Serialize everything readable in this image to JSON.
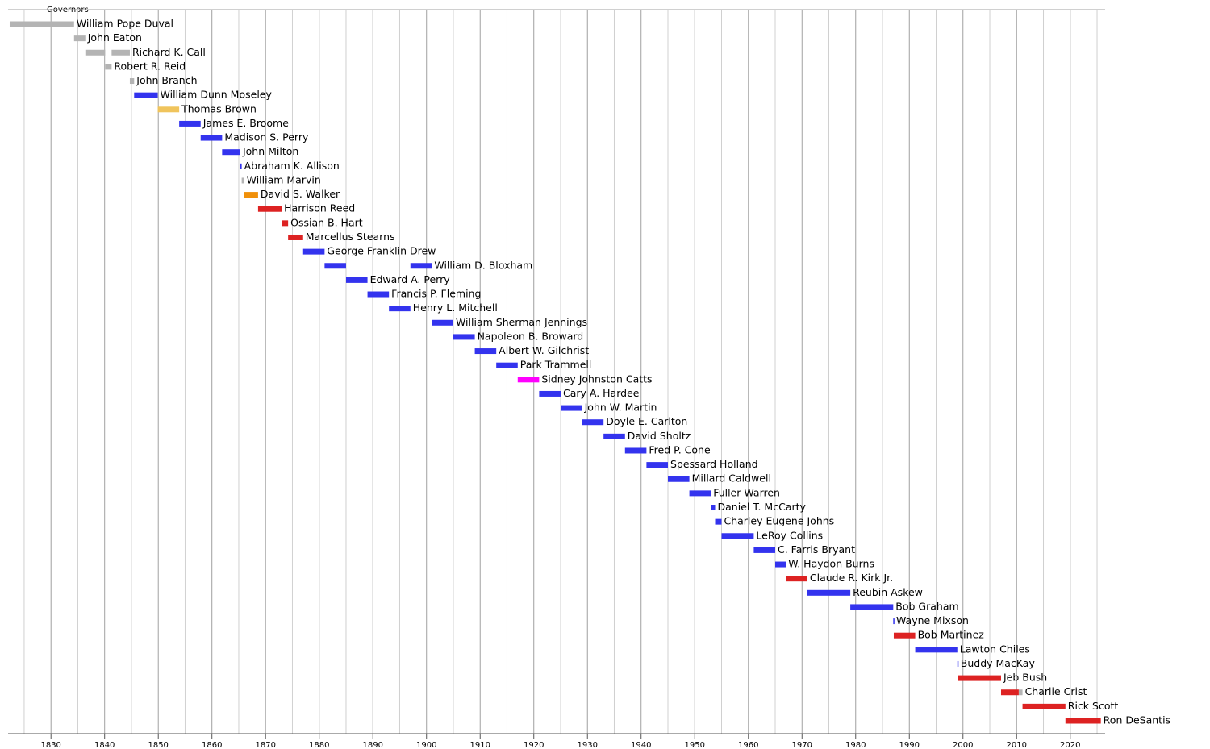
{
  "chart_data": {
    "type": "timeline",
    "title": "Governors",
    "xlim": [
      1822,
      2026.5
    ],
    "xticks": [
      1830,
      1840,
      1850,
      1860,
      1870,
      1880,
      1890,
      1900,
      1910,
      1920,
      1930,
      1940,
      1950,
      1960,
      1970,
      1980,
      1990,
      2000,
      2010,
      2020
    ],
    "minor_gridlines": [
      1825,
      1835,
      1845,
      1855,
      1865,
      1875,
      1885,
      1895,
      1905,
      1915,
      1925,
      1935,
      1945,
      1955,
      1965,
      1975,
      1985,
      1995,
      2005,
      2015,
      2025
    ],
    "grid": true,
    "rows": [
      {
        "name": "William Pope Duval",
        "segments": [
          {
            "start": 1822.3,
            "end": 1834.3,
            "color": "#b4b4b4"
          }
        ]
      },
      {
        "name": "John Eaton",
        "segments": [
          {
            "start": 1834.3,
            "end": 1836.4,
            "color": "#b4b4b4"
          }
        ]
      },
      {
        "name": "Richard K. Call",
        "segments": [
          {
            "start": 1836.4,
            "end": 1840.1,
            "color": "#b4b4b4"
          },
          {
            "start": 1841.3,
            "end": 1844.7,
            "color": "#b4b4b4"
          }
        ]
      },
      {
        "name": "Robert R. Reid",
        "segments": [
          {
            "start": 1840.1,
            "end": 1841.3,
            "color": "#b4b4b4"
          }
        ]
      },
      {
        "name": "John Branch",
        "segments": [
          {
            "start": 1844.7,
            "end": 1845.5,
            "color": "#b4b4b4"
          }
        ]
      },
      {
        "name": "William Dunn Moseley",
        "segments": [
          {
            "start": 1845.5,
            "end": 1849.9,
            "color": "#3333ee"
          }
        ]
      },
      {
        "name": "Thomas Brown",
        "segments": [
          {
            "start": 1849.9,
            "end": 1853.9,
            "color": "#f0c45c"
          }
        ]
      },
      {
        "name": "James E. Broome",
        "segments": [
          {
            "start": 1853.9,
            "end": 1857.9,
            "color": "#3333ee"
          }
        ]
      },
      {
        "name": "Madison S. Perry",
        "segments": [
          {
            "start": 1857.9,
            "end": 1861.9,
            "color": "#3333ee"
          }
        ]
      },
      {
        "name": "John Milton",
        "segments": [
          {
            "start": 1861.9,
            "end": 1865.3,
            "color": "#3333ee"
          }
        ]
      },
      {
        "name": "Abraham K. Allison",
        "segments": [
          {
            "start": 1865.3,
            "end": 1865.55,
            "color": "#3333ee"
          }
        ]
      },
      {
        "name": "William Marvin",
        "segments": [
          {
            "start": 1865.55,
            "end": 1866.0,
            "color": "#b4b4b4"
          }
        ]
      },
      {
        "name": "David S. Walker",
        "segments": [
          {
            "start": 1866.0,
            "end": 1868.6,
            "color": "#f0900a"
          }
        ]
      },
      {
        "name": "Harrison Reed",
        "segments": [
          {
            "start": 1868.6,
            "end": 1873.0,
            "color": "#dd2222"
          }
        ]
      },
      {
        "name": "Ossian B. Hart",
        "segments": [
          {
            "start": 1873.0,
            "end": 1874.2,
            "color": "#dd2222"
          }
        ]
      },
      {
        "name": "Marcellus Stearns",
        "segments": [
          {
            "start": 1874.2,
            "end": 1877.0,
            "color": "#dd2222"
          }
        ]
      },
      {
        "name": "George Franklin Drew",
        "segments": [
          {
            "start": 1877.0,
            "end": 1881.0,
            "color": "#3333ee"
          }
        ]
      },
      {
        "name": "William D. Bloxham",
        "segments": [
          {
            "start": 1881.0,
            "end": 1885.0,
            "color": "#3333ee"
          },
          {
            "start": 1897.0,
            "end": 1901.0,
            "color": "#3333ee"
          }
        ]
      },
      {
        "name": "Edward A. Perry",
        "segments": [
          {
            "start": 1885.0,
            "end": 1889.0,
            "color": "#3333ee"
          }
        ]
      },
      {
        "name": "Francis P. Fleming",
        "segments": [
          {
            "start": 1889.0,
            "end": 1893.0,
            "color": "#3333ee"
          }
        ]
      },
      {
        "name": "Henry L. Mitchell",
        "segments": [
          {
            "start": 1893.0,
            "end": 1897.0,
            "color": "#3333ee"
          }
        ]
      },
      {
        "name": "William Sherman Jennings",
        "segments": [
          {
            "start": 1901.0,
            "end": 1905.0,
            "color": "#3333ee"
          }
        ]
      },
      {
        "name": "Napoleon B. Broward",
        "segments": [
          {
            "start": 1905.0,
            "end": 1909.0,
            "color": "#3333ee"
          }
        ]
      },
      {
        "name": "Albert W. Gilchrist",
        "segments": [
          {
            "start": 1909.0,
            "end": 1913.0,
            "color": "#3333ee"
          }
        ]
      },
      {
        "name": "Park Trammell",
        "segments": [
          {
            "start": 1913.0,
            "end": 1917.0,
            "color": "#3333ee"
          }
        ]
      },
      {
        "name": "Sidney Johnston Catts",
        "segments": [
          {
            "start": 1917.0,
            "end": 1921.0,
            "color": "#ff00ff"
          }
        ]
      },
      {
        "name": "Cary A. Hardee",
        "segments": [
          {
            "start": 1921.0,
            "end": 1925.0,
            "color": "#3333ee"
          }
        ]
      },
      {
        "name": "John W. Martin",
        "segments": [
          {
            "start": 1925.0,
            "end": 1929.0,
            "color": "#3333ee"
          }
        ]
      },
      {
        "name": "Doyle E. Carlton",
        "segments": [
          {
            "start": 1929.0,
            "end": 1933.0,
            "color": "#3333ee"
          }
        ]
      },
      {
        "name": "David Sholtz",
        "segments": [
          {
            "start": 1933.0,
            "end": 1937.0,
            "color": "#3333ee"
          }
        ]
      },
      {
        "name": "Fred P. Cone",
        "segments": [
          {
            "start": 1937.0,
            "end": 1941.0,
            "color": "#3333ee"
          }
        ]
      },
      {
        "name": "Spessard Holland",
        "segments": [
          {
            "start": 1941.0,
            "end": 1945.0,
            "color": "#3333ee"
          }
        ]
      },
      {
        "name": "Millard Caldwell",
        "segments": [
          {
            "start": 1945.0,
            "end": 1949.0,
            "color": "#3333ee"
          }
        ]
      },
      {
        "name": "Fuller Warren",
        "segments": [
          {
            "start": 1949.0,
            "end": 1953.0,
            "color": "#3333ee"
          }
        ]
      },
      {
        "name": "Daniel T. McCarty",
        "segments": [
          {
            "start": 1953.0,
            "end": 1953.8,
            "color": "#3333ee"
          }
        ]
      },
      {
        "name": "Charley Eugene Johns",
        "segments": [
          {
            "start": 1953.8,
            "end": 1955.0,
            "color": "#3333ee"
          }
        ]
      },
      {
        "name": "LeRoy Collins",
        "segments": [
          {
            "start": 1955.0,
            "end": 1961.0,
            "color": "#3333ee"
          }
        ]
      },
      {
        "name": "C. Farris Bryant",
        "segments": [
          {
            "start": 1961.0,
            "end": 1965.0,
            "color": "#3333ee"
          }
        ]
      },
      {
        "name": "W. Haydon Burns",
        "segments": [
          {
            "start": 1965.0,
            "end": 1967.0,
            "color": "#3333ee"
          }
        ]
      },
      {
        "name": "Claude R. Kirk Jr.",
        "segments": [
          {
            "start": 1967.0,
            "end": 1971.0,
            "color": "#dd2222"
          }
        ]
      },
      {
        "name": "Reubin Askew",
        "segments": [
          {
            "start": 1971.0,
            "end": 1979.0,
            "color": "#3333ee"
          }
        ]
      },
      {
        "name": "Bob Graham",
        "segments": [
          {
            "start": 1979.0,
            "end": 1987.0,
            "color": "#3333ee"
          }
        ]
      },
      {
        "name": "Wayne Mixson",
        "segments": [
          {
            "start": 1987.0,
            "end": 1987.1,
            "color": "#3333ee"
          }
        ]
      },
      {
        "name": "Bob Martinez",
        "segments": [
          {
            "start": 1987.1,
            "end": 1991.1,
            "color": "#dd2222"
          }
        ]
      },
      {
        "name": "Lawton Chiles",
        "segments": [
          {
            "start": 1991.1,
            "end": 1998.95,
            "color": "#3333ee"
          }
        ]
      },
      {
        "name": "Buddy MacKay",
        "segments": [
          {
            "start": 1998.95,
            "end": 1999.1,
            "color": "#3333ee"
          }
        ]
      },
      {
        "name": "Jeb Bush",
        "segments": [
          {
            "start": 1999.1,
            "end": 2007.1,
            "color": "#dd2222"
          }
        ]
      },
      {
        "name": "Charlie Crist",
        "segments": [
          {
            "start": 2007.1,
            "end": 2010.4,
            "color": "#dd2222"
          },
          {
            "start": 2010.4,
            "end": 2011.1,
            "color": "#b4b4b4"
          }
        ]
      },
      {
        "name": "Rick Scott",
        "segments": [
          {
            "start": 2011.1,
            "end": 2019.1,
            "color": "#dd2222"
          }
        ]
      },
      {
        "name": "Ron DeSantis",
        "segments": [
          {
            "start": 2019.1,
            "end": 2025.7,
            "color": "#dd2222"
          }
        ]
      }
    ]
  }
}
